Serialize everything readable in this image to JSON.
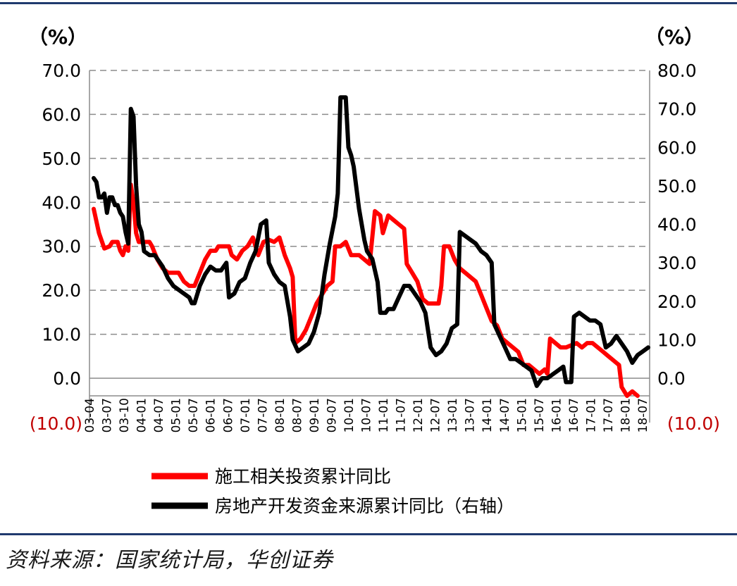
{
  "chart_data": {
    "type": "line",
    "title": "",
    "left_axis": {
      "unit": "（%）",
      "ylim": [
        -10,
        70
      ],
      "ticks": [
        70,
        60,
        50,
        40,
        30,
        20,
        10,
        0,
        -10
      ],
      "tick_labels": [
        "70.0",
        "60.0",
        "50.0",
        "40.0",
        "30.0",
        "20.0",
        "10.0",
        "0.0",
        "(10.0)"
      ]
    },
    "right_axis": {
      "unit": "（%）",
      "ylim": [
        -10,
        80
      ],
      "ticks": [
        80,
        70,
        60,
        50,
        40,
        30,
        20,
        10,
        0,
        -10
      ],
      "tick_labels": [
        "80.0",
        "70.0",
        "60.0",
        "50.0",
        "40.0",
        "30.0",
        "20.0",
        "10.0",
        "0.0",
        "(10.0)"
      ]
    },
    "grid": true,
    "x_tick_labels": [
      "03-04",
      "03-07",
      "03-10",
      "04-01",
      "04-07",
      "05-01",
      "05-07",
      "06-01",
      "06-07",
      "07-01",
      "07-07",
      "08-01",
      "08-07",
      "09-01",
      "09-07",
      "10-01",
      "10-07",
      "11-01",
      "11-07",
      "12-01",
      "12-07",
      "13-01",
      "13-07",
      "14-01",
      "14-07",
      "15-01",
      "15-07",
      "16-01",
      "16-07",
      "17-01",
      "17-07",
      "18-01",
      "18-07"
    ],
    "series": [
      {
        "name": "施工相关投资累计同比",
        "axis": "left",
        "color": "#ff0000",
        "points": [
          [
            0,
            38.5
          ],
          [
            2,
            33
          ],
          [
            4,
            29.5
          ],
          [
            6,
            30
          ],
          [
            7,
            31
          ],
          [
            9,
            31
          ],
          [
            10,
            29
          ],
          [
            11,
            28
          ],
          [
            12,
            30
          ],
          [
            13,
            29
          ],
          [
            14,
            44
          ],
          [
            15,
            40
          ],
          [
            16,
            33
          ],
          [
            17,
            31
          ],
          [
            19,
            31
          ],
          [
            21,
            31
          ],
          [
            22,
            30
          ],
          [
            24,
            27
          ],
          [
            26,
            25
          ],
          [
            28,
            24
          ],
          [
            30,
            24
          ],
          [
            32,
            24
          ],
          [
            34,
            22
          ],
          [
            36,
            21
          ],
          [
            38,
            21
          ],
          [
            40,
            24
          ],
          [
            42,
            27
          ],
          [
            44,
            29
          ],
          [
            46,
            29
          ],
          [
            47,
            30
          ],
          [
            48,
            30
          ],
          [
            51,
            30
          ],
          [
            52,
            28
          ],
          [
            54,
            27
          ],
          [
            56,
            29
          ],
          [
            58,
            30
          ],
          [
            60,
            32
          ],
          [
            62,
            28
          ],
          [
            64,
            31
          ],
          [
            66,
            31.5
          ],
          [
            68,
            31
          ],
          [
            70,
            32
          ],
          [
            72,
            28
          ],
          [
            74,
            25
          ],
          [
            75,
            23
          ],
          [
            76,
            8
          ],
          [
            78,
            9
          ],
          [
            80,
            11
          ],
          [
            82,
            14
          ],
          [
            84,
            17
          ],
          [
            86,
            19
          ],
          [
            88,
            21
          ],
          [
            90,
            22
          ],
          [
            91,
            30
          ],
          [
            93,
            30
          ],
          [
            95,
            31
          ],
          [
            97,
            28
          ],
          [
            100,
            28
          ],
          [
            102,
            27
          ],
          [
            104,
            26
          ],
          [
            106,
            38
          ],
          [
            108,
            37
          ],
          [
            109,
            33
          ],
          [
            111,
            37
          ],
          [
            113,
            36
          ],
          [
            115,
            35
          ],
          [
            117,
            34
          ],
          [
            118,
            26
          ],
          [
            120,
            24
          ],
          [
            122,
            22
          ],
          [
            124,
            18
          ],
          [
            126,
            17
          ],
          [
            128,
            17
          ],
          [
            130,
            17
          ],
          [
            131,
            21
          ],
          [
            132,
            30
          ],
          [
            134,
            30
          ],
          [
            136,
            27
          ],
          [
            138,
            25
          ],
          [
            140,
            24
          ],
          [
            142,
            23
          ],
          [
            144,
            22
          ],
          [
            146,
            19
          ],
          [
            148,
            16
          ],
          [
            150,
            13
          ],
          [
            152,
            12
          ],
          [
            154,
            9
          ],
          [
            156,
            8
          ],
          [
            158,
            7
          ],
          [
            160,
            6
          ],
          [
            162,
            3
          ],
          [
            164,
            3
          ],
          [
            166,
            2
          ],
          [
            168,
            1
          ],
          [
            170,
            2
          ],
          [
            171,
            1
          ],
          [
            172,
            9
          ],
          [
            174,
            8
          ],
          [
            176,
            7
          ],
          [
            178,
            7
          ],
          [
            180,
            7.5
          ],
          [
            182,
            8
          ],
          [
            184,
            7
          ],
          [
            186,
            8
          ],
          [
            188,
            8
          ],
          [
            190,
            7
          ],
          [
            192,
            6
          ],
          [
            194,
            5
          ],
          [
            196,
            4
          ],
          [
            198,
            3
          ],
          [
            199,
            -2
          ],
          [
            201,
            -4
          ],
          [
            203,
            -3
          ],
          [
            205,
            -4
          ]
        ]
      },
      {
        "name": "房地产开发资金来源累计同比（右轴）",
        "axis": "right",
        "color": "#000000",
        "points": [
          [
            0,
            52
          ],
          [
            1,
            51
          ],
          [
            2,
            47
          ],
          [
            3,
            47
          ],
          [
            4,
            48
          ],
          [
            5,
            43
          ],
          [
            6,
            47
          ],
          [
            7,
            47
          ],
          [
            8,
            45
          ],
          [
            9,
            45
          ],
          [
            10,
            43
          ],
          [
            11,
            42
          ],
          [
            12,
            38
          ],
          [
            13,
            35
          ],
          [
            14,
            70
          ],
          [
            15,
            68
          ],
          [
            16,
            50
          ],
          [
            17,
            40
          ],
          [
            18,
            38
          ],
          [
            19,
            33
          ],
          [
            21,
            32
          ],
          [
            23,
            32
          ],
          [
            24,
            31
          ],
          [
            26,
            29
          ],
          [
            28,
            26
          ],
          [
            30,
            24
          ],
          [
            32,
            23
          ],
          [
            34,
            22
          ],
          [
            36,
            21
          ],
          [
            37,
            19.5
          ],
          [
            38,
            19.5
          ],
          [
            40,
            24
          ],
          [
            42,
            27
          ],
          [
            44,
            29
          ],
          [
            46,
            28
          ],
          [
            48,
            28
          ],
          [
            50,
            30
          ],
          [
            51,
            21
          ],
          [
            53,
            22
          ],
          [
            55,
            25
          ],
          [
            57,
            26
          ],
          [
            59,
            30
          ],
          [
            61,
            33
          ],
          [
            63,
            40
          ],
          [
            65,
            41
          ],
          [
            66,
            30
          ],
          [
            68,
            27
          ],
          [
            70,
            25
          ],
          [
            72,
            24
          ],
          [
            74,
            16
          ],
          [
            75,
            10
          ],
          [
            77,
            7
          ],
          [
            79,
            8
          ],
          [
            81,
            9
          ],
          [
            83,
            12
          ],
          [
            85,
            17
          ],
          [
            87,
            27
          ],
          [
            89,
            35
          ],
          [
            91,
            42
          ],
          [
            92,
            48
          ],
          [
            93,
            73
          ],
          [
            95,
            73
          ],
          [
            96,
            60
          ],
          [
            97,
            58
          ],
          [
            98,
            55
          ],
          [
            100,
            44
          ],
          [
            102,
            36
          ],
          [
            103,
            33
          ],
          [
            105,
            31
          ],
          [
            107,
            25
          ],
          [
            108,
            17
          ],
          [
            110,
            17
          ],
          [
            111,
            18
          ],
          [
            113,
            18
          ],
          [
            115,
            21
          ],
          [
            117,
            24
          ],
          [
            119,
            24
          ],
          [
            121,
            22
          ],
          [
            123,
            20
          ],
          [
            125,
            17
          ],
          [
            127,
            8
          ],
          [
            129,
            6
          ],
          [
            131,
            7
          ],
          [
            133,
            9
          ],
          [
            135,
            13
          ],
          [
            137,
            14
          ],
          [
            138,
            38
          ],
          [
            140,
            37
          ],
          [
            142,
            36
          ],
          [
            144,
            35
          ],
          [
            146,
            33
          ],
          [
            148,
            32
          ],
          [
            150,
            30
          ],
          [
            151,
            14
          ],
          [
            153,
            11
          ],
          [
            155,
            8
          ],
          [
            157,
            5
          ],
          [
            159,
            5
          ],
          [
            161,
            4
          ],
          [
            163,
            3
          ],
          [
            165,
            2
          ],
          [
            167,
            -2
          ],
          [
            169,
            0
          ],
          [
            171,
            0
          ],
          [
            173,
            1
          ],
          [
            175,
            2
          ],
          [
            177,
            3
          ],
          [
            178,
            -1
          ],
          [
            180,
            -1
          ],
          [
            181,
            16
          ],
          [
            183,
            17
          ],
          [
            185,
            16
          ],
          [
            187,
            15
          ],
          [
            189,
            15
          ],
          [
            191,
            14
          ],
          [
            193,
            8
          ],
          [
            195,
            9
          ],
          [
            197,
            11
          ],
          [
            199,
            9
          ],
          [
            201,
            7
          ],
          [
            203,
            4
          ],
          [
            205,
            6
          ],
          [
            207,
            7
          ],
          [
            209,
            8
          ]
        ]
      }
    ],
    "legend_position": "bottom"
  },
  "source": "资料来源：国家统计局，华创证券"
}
